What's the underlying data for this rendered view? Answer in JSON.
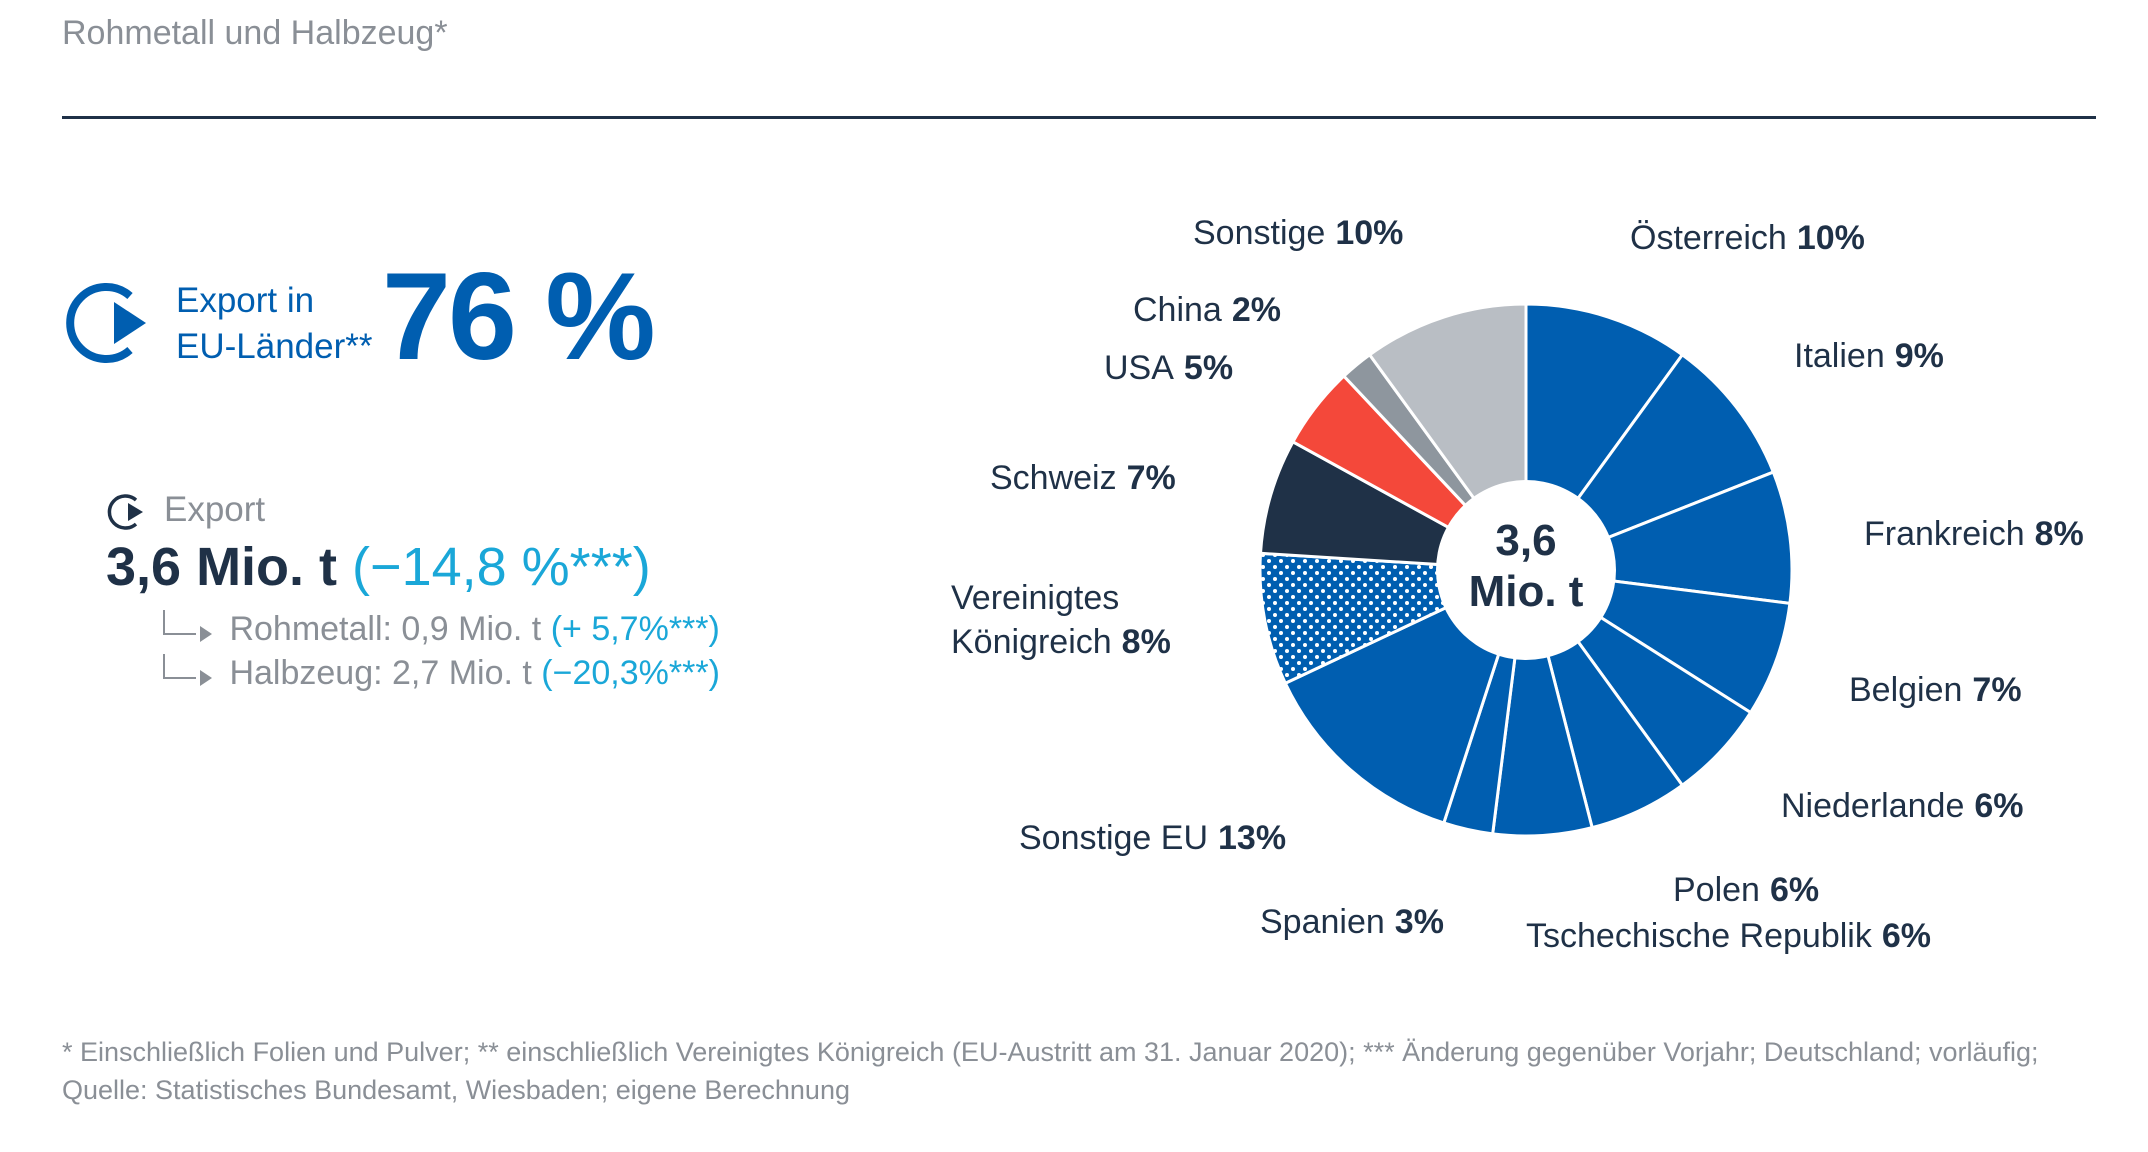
{
  "header": {
    "title": "Rohmetall und Halbzeug*"
  },
  "kpi": {
    "label_line1": "Export in",
    "label_line2": "EU-Länder**",
    "value": "76 %"
  },
  "export": {
    "label": "Export",
    "total": "3,6 Mio. t",
    "total_change": "(−14,8 %***)",
    "rohmetall_label": "Rohmetall: 0,9 Mio. t",
    "rohmetall_change": "(+ 5,7%***)",
    "halbzeug_label": "Halbzeug: 2,7 Mio. t",
    "halbzeug_change": "(−20,3%***)"
  },
  "colors": {
    "eu_blue": "#005eb0",
    "navy": "#1f3147",
    "red": "#f4483a",
    "gray": "#8e969e",
    "light_gray": "#b9bec4",
    "accent_cyan": "#1aa7d8"
  },
  "chart_data": {
    "type": "pie",
    "center_line1": "3,6",
    "center_line2": "Mio. t",
    "slices": [
      {
        "name": "Österreich",
        "value": 10,
        "pct_label": "10%",
        "color": "#005eb0"
      },
      {
        "name": "Italien",
        "value": 9,
        "pct_label": "9%",
        "color": "#005eb0"
      },
      {
        "name": "Frankreich",
        "value": 8,
        "pct_label": "8%",
        "color": "#005eb0"
      },
      {
        "name": "Belgien",
        "value": 7,
        "pct_label": "7%",
        "color": "#005eb0"
      },
      {
        "name": "Niederlande",
        "value": 6,
        "pct_label": "6%",
        "color": "#005eb0"
      },
      {
        "name": "Tschechische Republik",
        "value": 6,
        "pct_label": "6%",
        "color": "#005eb0"
      },
      {
        "name": "Polen",
        "value": 6,
        "pct_label": "6%",
        "color": "#005eb0"
      },
      {
        "name": "Spanien",
        "value": 3,
        "pct_label": "3%",
        "color": "#005eb0"
      },
      {
        "name": "Sonstige EU",
        "value": 13,
        "pct_label": "13%",
        "color": "#005eb0"
      },
      {
        "name_line1": "Vereinigtes",
        "name_line2": "Königreich",
        "value": 8,
        "pct_label": "8%",
        "color": "#005eb0",
        "pattern": "dots"
      },
      {
        "name": "Schweiz",
        "value": 7,
        "pct_label": "7%",
        "color": "#1f3147"
      },
      {
        "name": "USA",
        "value": 5,
        "pct_label": "5%",
        "color": "#f4483a"
      },
      {
        "name": "China",
        "value": 2,
        "pct_label": "2%",
        "color": "#8e969e"
      },
      {
        "name": "Sonstige",
        "value": 10,
        "pct_label": "10%",
        "color": "#b9bec4"
      }
    ]
  },
  "footnote": {
    "line1": "* Einschließlich Folien und Pulver; ** einschließlich Vereinigtes Königreich (EU-Austritt am 31. Januar 2020); *** Änderung gegenüber Vorjahr; Deutschland; vorläufig;",
    "line2": "Quelle: Statistisches Bundesamt, Wiesbaden; eigene Berechnung"
  }
}
